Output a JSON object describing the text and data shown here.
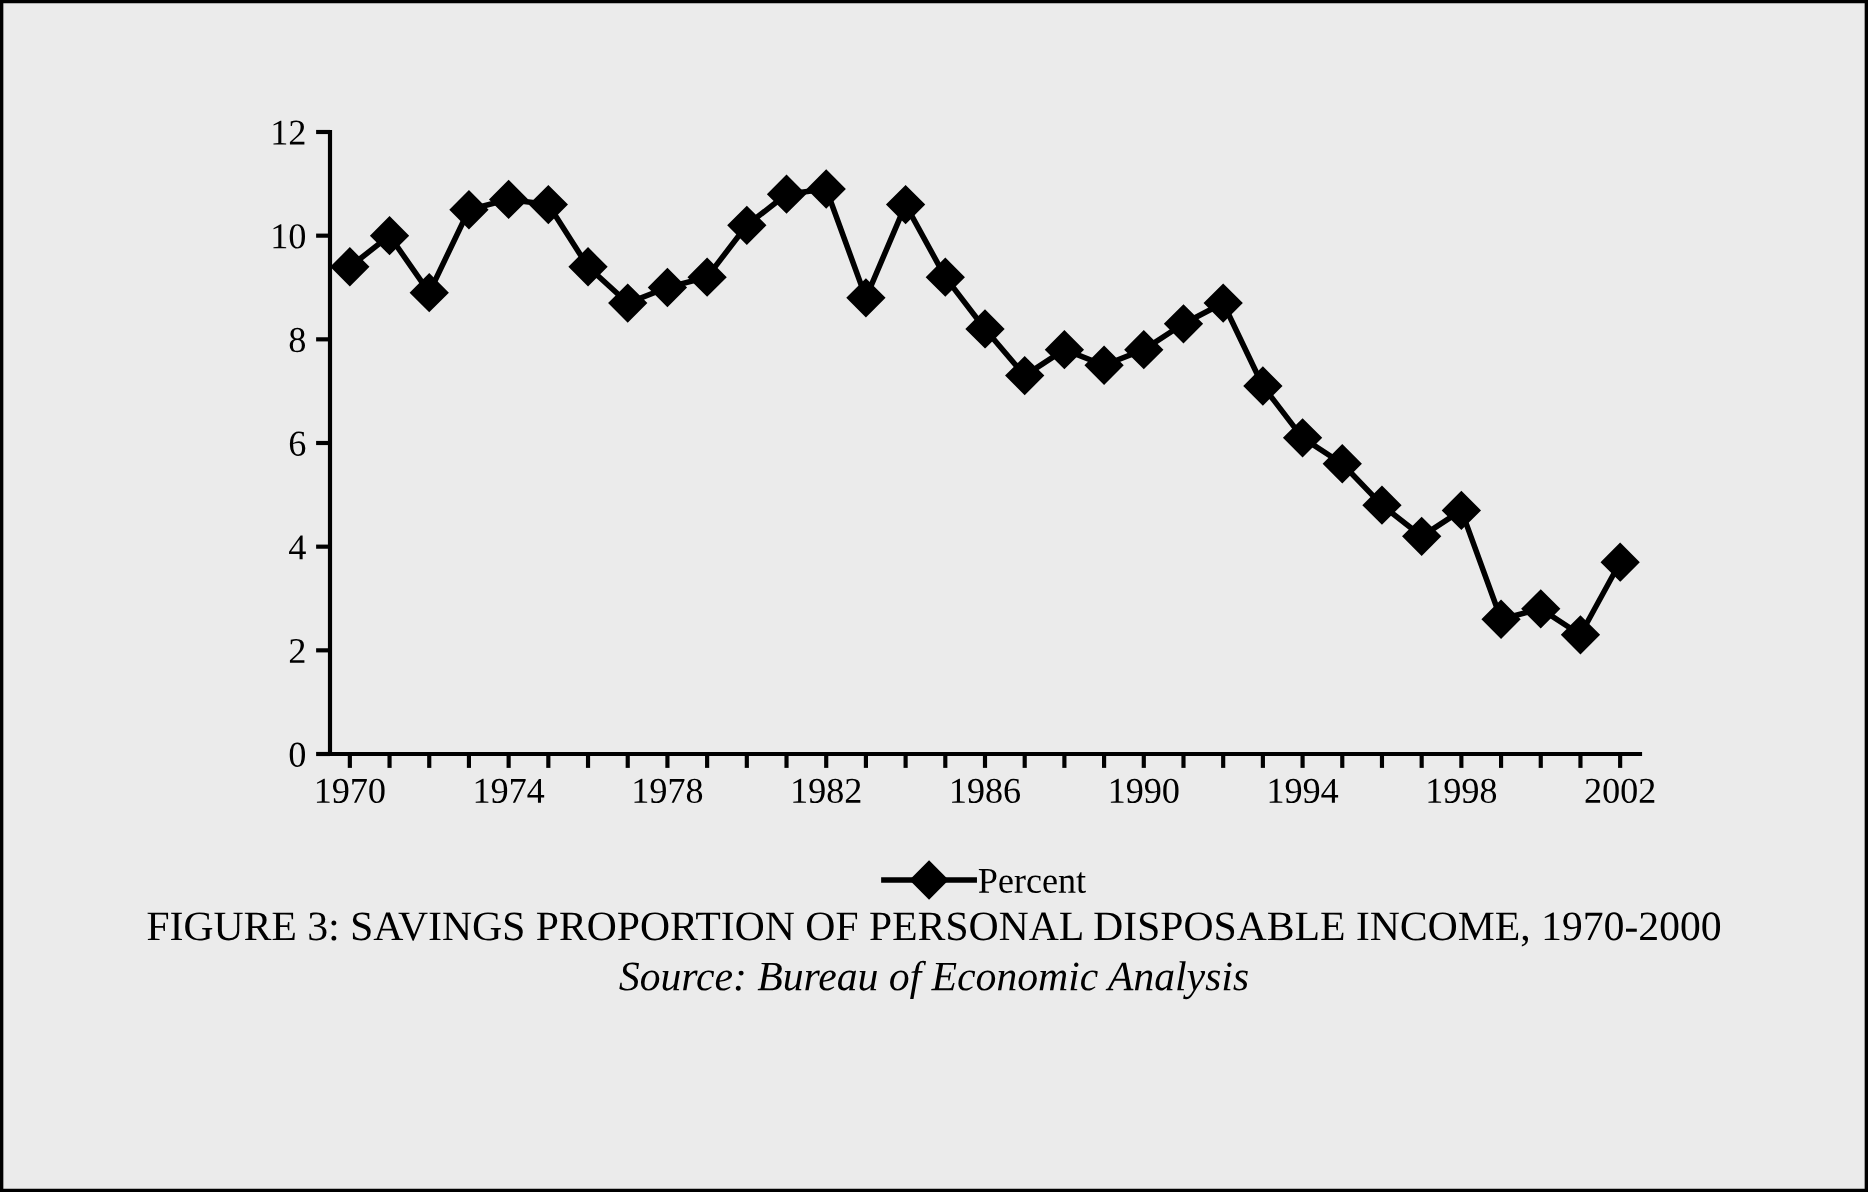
{
  "chart_data": {
    "type": "line",
    "title": "FIGURE 3: SAVINGS PROPORTION OF PERSONAL DISPOSABLE INCOME, 1970-2000",
    "annotations": [
      "Source: Bureau of Economic Analysis"
    ],
    "x": [
      1970,
      1971,
      1972,
      1973,
      1974,
      1975,
      1976,
      1977,
      1978,
      1979,
      1980,
      1981,
      1982,
      1983,
      1984,
      1985,
      1986,
      1987,
      1988,
      1989,
      1990,
      1991,
      1992,
      1993,
      1994,
      1995,
      1996,
      1997,
      1998,
      1999,
      2000,
      2001,
      2002
    ],
    "series": [
      {
        "name": "Percent",
        "color": "#000000",
        "values": [
          9.4,
          10.0,
          8.9,
          10.5,
          10.7,
          10.6,
          9.4,
          8.7,
          9.0,
          9.2,
          10.2,
          10.8,
          10.9,
          8.8,
          10.6,
          9.2,
          8.2,
          7.3,
          7.8,
          7.5,
          7.8,
          8.3,
          8.7,
          7.1,
          6.1,
          5.6,
          4.8,
          4.2,
          4.7,
          2.6,
          2.8,
          2.3,
          3.7
        ]
      }
    ],
    "xlim": [
      1969.5,
      2002.5
    ],
    "xticks": [
      1970,
      {
        "value": 1971,
        "label": null
      },
      {
        "value": 1972,
        "label": null
      },
      {
        "value": 1973,
        "label": null
      },
      1974,
      {
        "value": 1975,
        "label": null
      },
      {
        "value": 1976,
        "label": null
      },
      {
        "value": 1977,
        "label": null
      },
      1978,
      {
        "value": 1979,
        "label": null
      },
      {
        "value": 1980,
        "label": null
      },
      {
        "value": 1981,
        "label": null
      },
      1982,
      {
        "value": 1983,
        "label": null
      },
      {
        "value": 1984,
        "label": null
      },
      {
        "value": 1985,
        "label": null
      },
      1986,
      {
        "value": 1987,
        "label": null
      },
      {
        "value": 1988,
        "label": null
      },
      {
        "value": 1989,
        "label": null
      },
      1990,
      {
        "value": 1991,
        "label": null
      },
      {
        "value": 1992,
        "label": null
      },
      {
        "value": 1993,
        "label": null
      },
      1994,
      {
        "value": 1995,
        "label": null
      },
      {
        "value": 1996,
        "label": null
      },
      {
        "value": 1997,
        "label": null
      },
      1998,
      {
        "value": 1999,
        "label": null
      },
      {
        "value": 2000,
        "label": null
      },
      {
        "value": 2001,
        "label": null
      },
      2002
    ],
    "ylim": [
      0,
      12
    ],
    "yticks": [
      0,
      2,
      4,
      6,
      8,
      10,
      12
    ],
    "grid": false,
    "legend": "bottom",
    "marker": "diamond",
    "line_style": "solid"
  }
}
